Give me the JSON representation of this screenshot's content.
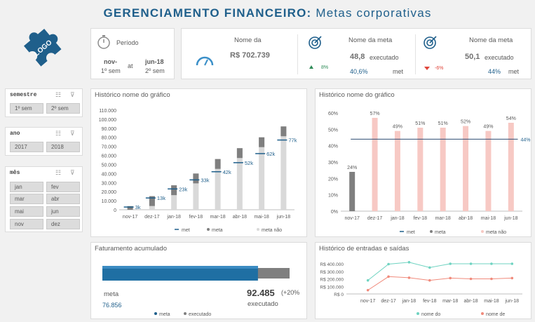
{
  "header": {
    "title_bold": "GERENCIAMENTO FINANCEIRO:",
    "title_rest": " Metas corporativas",
    "logo_text": "LOGO"
  },
  "period": {
    "label": "Período",
    "from_top": "nov-",
    "from_bottom": "1º sem",
    "sep": "at",
    "to_top": "jun-18",
    "to_bottom": "2º sem"
  },
  "kpi1": {
    "label": "Nome da",
    "value": "R$ 702.739"
  },
  "kpi2": {
    "label": "Nome da meta",
    "value": "48,8",
    "value_suffix": "executado",
    "delta": "8%",
    "pct": "40,6%",
    "pct_suffix": "met"
  },
  "kpi3": {
    "label": "Nome da meta",
    "value": "50,1",
    "value_suffix": "executado",
    "delta": "-6%",
    "pct": "44%",
    "pct_suffix": "met"
  },
  "slicers": [
    {
      "title": "semestre",
      "items": [
        "1º sem",
        "2º sem"
      ]
    },
    {
      "title": "ano",
      "items": [
        "2017",
        "2018"
      ]
    },
    {
      "title": "mês",
      "items": [
        "jan",
        "fev",
        "mar",
        "abr",
        "mai",
        "jun",
        "nov",
        "dez"
      ]
    }
  ],
  "chart_data": [
    {
      "type": "bar",
      "title": "Histórico nome do gráfico",
      "categories": [
        "nov-17",
        "dez-17",
        "jan-18",
        "fev-18",
        "mar-18",
        "abr-18",
        "mai-18",
        "jun-18"
      ],
      "ylim": [
        0,
        110000
      ],
      "y_ticks": [
        "0",
        "10.000",
        "20.000",
        "30.000",
        "40.000",
        "50.000",
        "60.000",
        "70.000",
        "80.000",
        "90.000",
        "100.000",
        "110.000"
      ],
      "series": [
        {
          "name": "met",
          "values": [
            3000,
            13000,
            23000,
            33000,
            42000,
            52000,
            62000,
            77000
          ],
          "labels": [
            "3k",
            "13k",
            "23k",
            "33k",
            "42k",
            "52k",
            "62k",
            "77k"
          ]
        },
        {
          "name": "meta",
          "values": [
            4000,
            15000,
            27000,
            40000,
            56000,
            68000,
            80000,
            92000
          ]
        },
        {
          "name": "meta não",
          "values": [
            4000,
            15000,
            27000,
            40000,
            56000,
            68000,
            80000,
            92000
          ]
        }
      ]
    },
    {
      "type": "bar",
      "title": "Histórico nome do gráfico",
      "categories": [
        "nov-17",
        "dez-17",
        "jan-18",
        "fev-18",
        "mar-18",
        "abr-18",
        "mai-18",
        "jun-18"
      ],
      "ylim": [
        0,
        60
      ],
      "y_ticks": [
        "0%",
        "10%",
        "20%",
        "30%",
        "40%",
        "50%",
        "60%"
      ],
      "series": [
        {
          "name": "met",
          "values": [
            44,
            44,
            44,
            44,
            44,
            44,
            44,
            44
          ],
          "labels": [
            "44%"
          ]
        },
        {
          "name": "meta",
          "values": [
            24,
            null,
            null,
            null,
            null,
            null,
            null,
            null
          ]
        },
        {
          "name": "meta não",
          "values": [
            null,
            57,
            49,
            51,
            51,
            52,
            49,
            54
          ]
        }
      ],
      "data_labels": [
        "24%",
        "57%",
        "49%",
        "51%",
        "51%",
        "52%",
        "49%",
        "54%"
      ]
    },
    {
      "type": "bar",
      "title": "Faturamento acumulado",
      "series": [
        {
          "name": "meta",
          "values": [
            76856
          ],
          "label": "76.856",
          "caption": "meta"
        },
        {
          "name": "executado",
          "values": [
            92485
          ],
          "label": "92.485",
          "caption": "executado",
          "delta": "(+20%"
        }
      ]
    },
    {
      "type": "line",
      "title": "Histórico de entradas e saídas",
      "categories": [
        "nov-17",
        "dez-17",
        "jan-18",
        "fev-18",
        "mar-18",
        "abr-18",
        "mai-18",
        "jun-18"
      ],
      "ylim": [
        0,
        400000
      ],
      "y_ticks": [
        "R$ 0",
        "R$ 100.000",
        "R$ 200.000",
        "R$ 300.000",
        "R$ 400.000"
      ],
      "series": [
        {
          "name": "nome do",
          "values": [
            180000,
            395000,
            420000,
            350000,
            400000,
            400000,
            400000,
            400000
          ]
        },
        {
          "name": "nome de",
          "values": [
            50000,
            230000,
            215000,
            180000,
            210000,
            200000,
            200000,
            210000
          ]
        }
      ]
    }
  ],
  "colors": {
    "accent": "#1f5f8b",
    "bar_gray": "#d9d9d9",
    "bar_dark": "#7f7f7f",
    "bar_pink": "#f7c9c4",
    "teal": "#6fd3c1",
    "salmon": "#f08a7b",
    "neg": "#e0453a",
    "pos": "#2e8b57"
  }
}
